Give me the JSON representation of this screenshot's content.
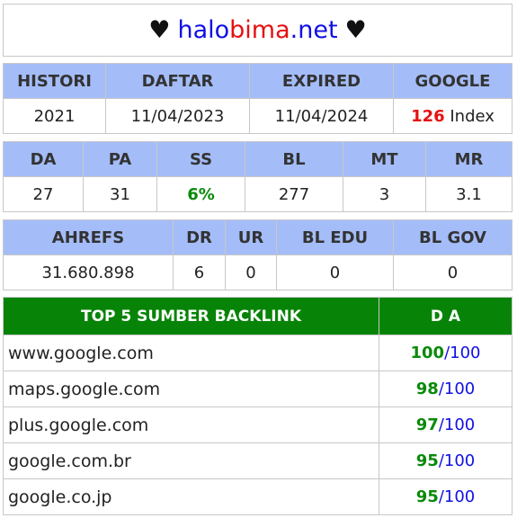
{
  "site": {
    "part1": "halo",
    "part2": "bima",
    "part3": ".net",
    "heart": "♥"
  },
  "info_table": {
    "headers": [
      "HISTORI",
      "DAFTAR",
      "EXPIRED",
      "GOOGLE"
    ],
    "histori": "2021",
    "daftar": "11/04/2023",
    "expired": "11/04/2024",
    "google_count": "126",
    "google_suffix": " Index"
  },
  "metrics_table": {
    "headers": [
      "DA",
      "PA",
      "SS",
      "BL",
      "MT",
      "MR"
    ],
    "values": [
      "27",
      "31",
      "6%",
      "277",
      "3",
      "3.1"
    ]
  },
  "ahrefs_table": {
    "headers": [
      "AHREFS",
      "DR",
      "UR",
      "BL EDU",
      "BL GOV"
    ],
    "values": [
      "31.680.898",
      "6",
      "0",
      "0",
      "0"
    ]
  },
  "backlinks": {
    "header_source": "TOP 5 SUMBER BACKLINK",
    "header_da": "D A",
    "rows": [
      {
        "domain": "www.google.com",
        "da": "100",
        "max": "/100"
      },
      {
        "domain": "maps.google.com",
        "da": "98",
        "max": "/100"
      },
      {
        "domain": "plus.google.com",
        "da": "97",
        "max": "/100"
      },
      {
        "domain": "google.com.br",
        "da": "95",
        "max": "/100"
      },
      {
        "domain": "google.co.jp",
        "da": "95",
        "max": "/100"
      }
    ]
  },
  "colors": {
    "header_bg": "#a4bdf9",
    "backlink_header_bg": "#078407",
    "accent_blue": "#1010e6",
    "accent_red": "#e61010",
    "accent_green": "#0a8a0a"
  }
}
